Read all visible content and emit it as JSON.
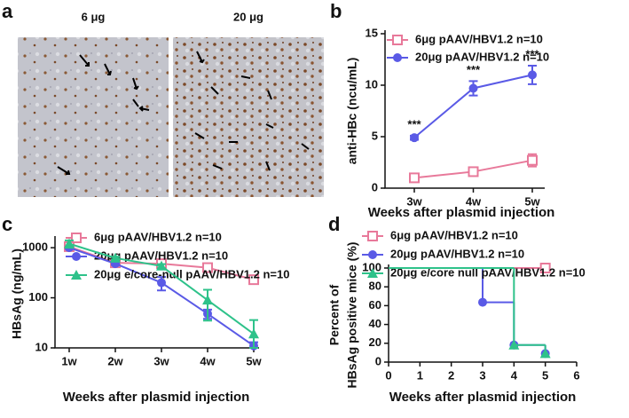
{
  "images": {
    "panel": "a",
    "labels": [
      "6 μg",
      "20 μg"
    ]
  },
  "chart_data": [
    {
      "panel": "b",
      "type": "line",
      "xlabel": "Weeks after plasmid injection",
      "ylabel": "anti-HBc (ncu/mL)",
      "categories": [
        "3w",
        "4w",
        "5w"
      ],
      "ylim": [
        0,
        15
      ],
      "yticks": [
        0,
        5,
        10,
        15
      ],
      "series": [
        {
          "name": "6μg pAAV/HBV1.2  n=10",
          "color": "#e8799a",
          "marker": "square-open",
          "values": [
            1.0,
            1.6,
            2.7
          ],
          "errors": [
            0.3,
            0.2,
            0.6
          ]
        },
        {
          "name": "20μg pAAV/HBV1.2  n=10",
          "color": "#5a5ae6",
          "marker": "circle",
          "values": [
            4.9,
            9.7,
            11.0
          ],
          "errors": [
            0.2,
            0.7,
            0.9
          ],
          "annotations": [
            "***",
            "***",
            "***"
          ]
        }
      ]
    },
    {
      "panel": "c",
      "type": "line",
      "log_scale": true,
      "xlabel": "Weeks after plasmid injection",
      "ylabel": "HBsAg (ng/mL)",
      "categories": [
        "1w",
        "2w",
        "3w",
        "4w",
        "5w"
      ],
      "ylim": [
        10,
        1450
      ],
      "yticks": [
        10,
        100,
        1000
      ],
      "series": [
        {
          "name": "6μg pAAV/HBV1.2  n=10",
          "color": "#e8799a",
          "marker": "square-open",
          "values": [
            1050,
            500,
            480,
            400,
            230
          ],
          "errors": [
            60,
            30,
            60,
            30,
            40
          ]
        },
        {
          "name": "20μg pAAV/HBV1.2  n=10",
          "color": "#5a5ae6",
          "marker": "circle",
          "values": [
            1000,
            480,
            200,
            48,
            11
          ],
          "errors": [
            50,
            30,
            60,
            10,
            2
          ]
        },
        {
          "name": "20μg e/core-null pAAV/HBV1.2  n=10",
          "color": "#2ec28a",
          "marker": "triangle",
          "values": [
            1200,
            620,
            430,
            90,
            19
          ],
          "errors": [
            200,
            40,
            40,
            55,
            17
          ]
        }
      ]
    },
    {
      "panel": "d",
      "type": "step",
      "xlabel": "Weeks after plasmid injection",
      "ylabel": [
        "Percent of",
        "HBsAg  positive mice (%)"
      ],
      "xlim": [
        0,
        6
      ],
      "xticks": [
        0,
        1,
        2,
        3,
        4,
        5,
        6
      ],
      "ylim": [
        0,
        100
      ],
      "yticks": [
        0,
        20,
        40,
        60,
        80,
        100
      ],
      "series": [
        {
          "name": "6μg pAAV/HBV1.2  n=10",
          "color": "#e8799a",
          "marker": "square-open",
          "x": [
            0,
            5
          ],
          "values": [
            100,
            100
          ]
        },
        {
          "name": "20μg pAAV/HBV1.2  n=10",
          "color": "#5a5ae6",
          "marker": "circle",
          "x": [
            0,
            3,
            4,
            5
          ],
          "values": [
            100,
            63.6,
            18.2,
            9.1
          ]
        },
        {
          "name": "20μg e/core null pAAV/HBV1.2  n=10",
          "color": "#2ec28a",
          "marker": "triangle",
          "x": [
            0,
            4,
            5
          ],
          "values": [
            100,
            18.2,
            9.1
          ]
        }
      ]
    }
  ]
}
